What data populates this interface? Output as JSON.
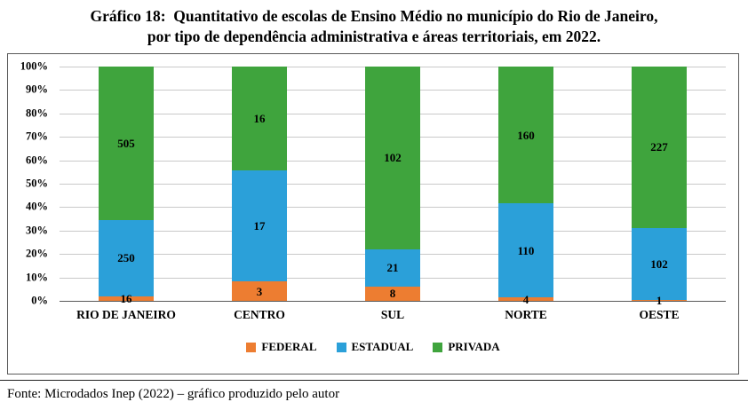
{
  "title": {
    "line1": "Gráfico 18:  Quantitativo de escolas de Ensino Médio no município do Rio de Janeiro,",
    "line2": "por tipo de dependência administrativa e áreas territoriais, em 2022."
  },
  "footer": "Fonte: Microdados Inep (2022) – gráfico produzido pelo autor",
  "chart_data": {
    "type": "bar",
    "stacked": true,
    "percent_stacked": true,
    "title": "Quantitativo de escolas de Ensino Médio no município do Rio de Janeiro, por tipo de dependência administrativa e áreas territoriais, em 2022",
    "categories": [
      "RIO DE JANEIRO",
      "CENTRO",
      "SUL",
      "NORTE",
      "OESTE"
    ],
    "series": [
      {
        "name": "FEDERAL",
        "color": "#ED7D31",
        "values": [
          16,
          3,
          8,
          4,
          1
        ]
      },
      {
        "name": "ESTADUAL",
        "color": "#2BA0D9",
        "values": [
          250,
          17,
          21,
          110,
          102
        ]
      },
      {
        "name": "PRIVADA",
        "color": "#3FA43D",
        "values": [
          505,
          16,
          102,
          160,
          227
        ]
      }
    ],
    "y_ticks": [
      "100%",
      "90%",
      "80%",
      "70%",
      "60%",
      "50%",
      "40%",
      "30%",
      "20%",
      "10%",
      "0%"
    ],
    "ylim": [
      0,
      100
    ],
    "xlabel": "",
    "ylabel": "",
    "grid": true,
    "legend_position": "bottom"
  }
}
